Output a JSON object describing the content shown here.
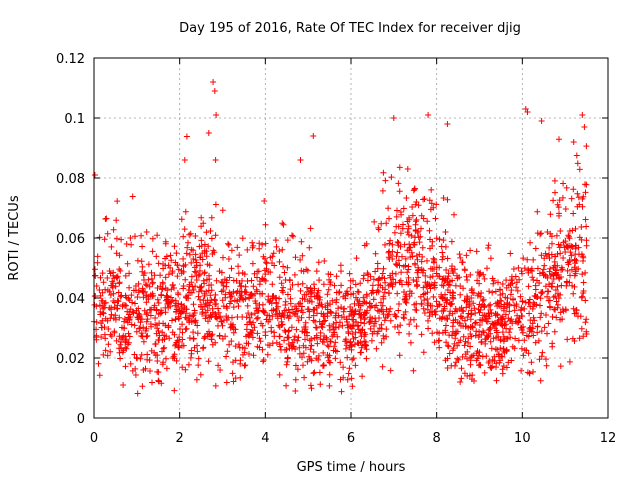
{
  "chart_data": {
    "type": "scatter",
    "title": "Day 195 of 2016, Rate Of TEC Index for receiver djig",
    "xlabel": "GPS time / hours",
    "ylabel": "ROTI / TECUs",
    "xlim": [
      0,
      12
    ],
    "ylim": [
      0,
      0.12
    ],
    "x_ticks": [
      0,
      2,
      4,
      6,
      8,
      10,
      12
    ],
    "x_tick_labels": [
      "0",
      "2",
      "4",
      "6",
      "8",
      "10",
      "12"
    ],
    "y_ticks": [
      0,
      0.02,
      0.04,
      0.06,
      0.08,
      0.1,
      0.12
    ],
    "y_tick_labels": [
      "0",
      "0.02",
      "0.04",
      "0.06",
      "0.08",
      "0.1",
      "0.12"
    ],
    "grid": true,
    "marker": "+",
    "marker_color": "#ff0000",
    "series": [
      {
        "name": "ROTI",
        "x_range": [
          0,
          11.5
        ],
        "profile_hours": [
          0,
          0.5,
          1,
          1.5,
          2,
          2.5,
          3,
          3.5,
          4,
          4.5,
          5,
          5.5,
          6,
          6.5,
          7,
          7.5,
          8,
          8.5,
          9,
          9.5,
          10,
          10.5,
          11,
          11.5
        ],
        "profile_mean": [
          0.035,
          0.038,
          0.036,
          0.035,
          0.038,
          0.042,
          0.036,
          0.034,
          0.038,
          0.037,
          0.033,
          0.03,
          0.03,
          0.036,
          0.046,
          0.052,
          0.046,
          0.033,
          0.032,
          0.03,
          0.036,
          0.041,
          0.05,
          0.058
        ],
        "profile_spread": [
          0.01,
          0.01,
          0.01,
          0.011,
          0.011,
          0.012,
          0.011,
          0.01,
          0.011,
          0.012,
          0.01,
          0.009,
          0.009,
          0.01,
          0.012,
          0.013,
          0.013,
          0.01,
          0.009,
          0.008,
          0.01,
          0.011,
          0.013,
          0.016
        ],
        "n_points": 2400,
        "highlights": [
          {
            "x": 0.02,
            "y": 0.081
          },
          {
            "x": 2.12,
            "y": 0.086
          },
          {
            "x": 2.78,
            "y": 0.112
          },
          {
            "x": 2.82,
            "y": 0.109
          },
          {
            "x": 2.85,
            "y": 0.101
          },
          {
            "x": 2.68,
            "y": 0.095
          },
          {
            "x": 2.84,
            "y": 0.086
          },
          {
            "x": 4.82,
            "y": 0.086
          },
          {
            "x": 5.12,
            "y": 0.094
          },
          {
            "x": 7.0,
            "y": 0.1
          },
          {
            "x": 7.8,
            "y": 0.101
          },
          {
            "x": 8.25,
            "y": 0.098
          },
          {
            "x": 10.08,
            "y": 0.103
          },
          {
            "x": 10.12,
            "y": 0.102
          },
          {
            "x": 10.45,
            "y": 0.099
          },
          {
            "x": 11.4,
            "y": 0.101
          },
          {
            "x": 11.45,
            "y": 0.097
          },
          {
            "x": 11.2,
            "y": 0.092
          },
          {
            "x": 8.55,
            "y": 0.012
          },
          {
            "x": 4.7,
            "y": 0.009
          },
          {
            "x": 0.68,
            "y": 0.011
          },
          {
            "x": 9.35,
            "y": 0.019
          },
          {
            "x": 11.5,
            "y": 0.028
          }
        ]
      }
    ]
  }
}
